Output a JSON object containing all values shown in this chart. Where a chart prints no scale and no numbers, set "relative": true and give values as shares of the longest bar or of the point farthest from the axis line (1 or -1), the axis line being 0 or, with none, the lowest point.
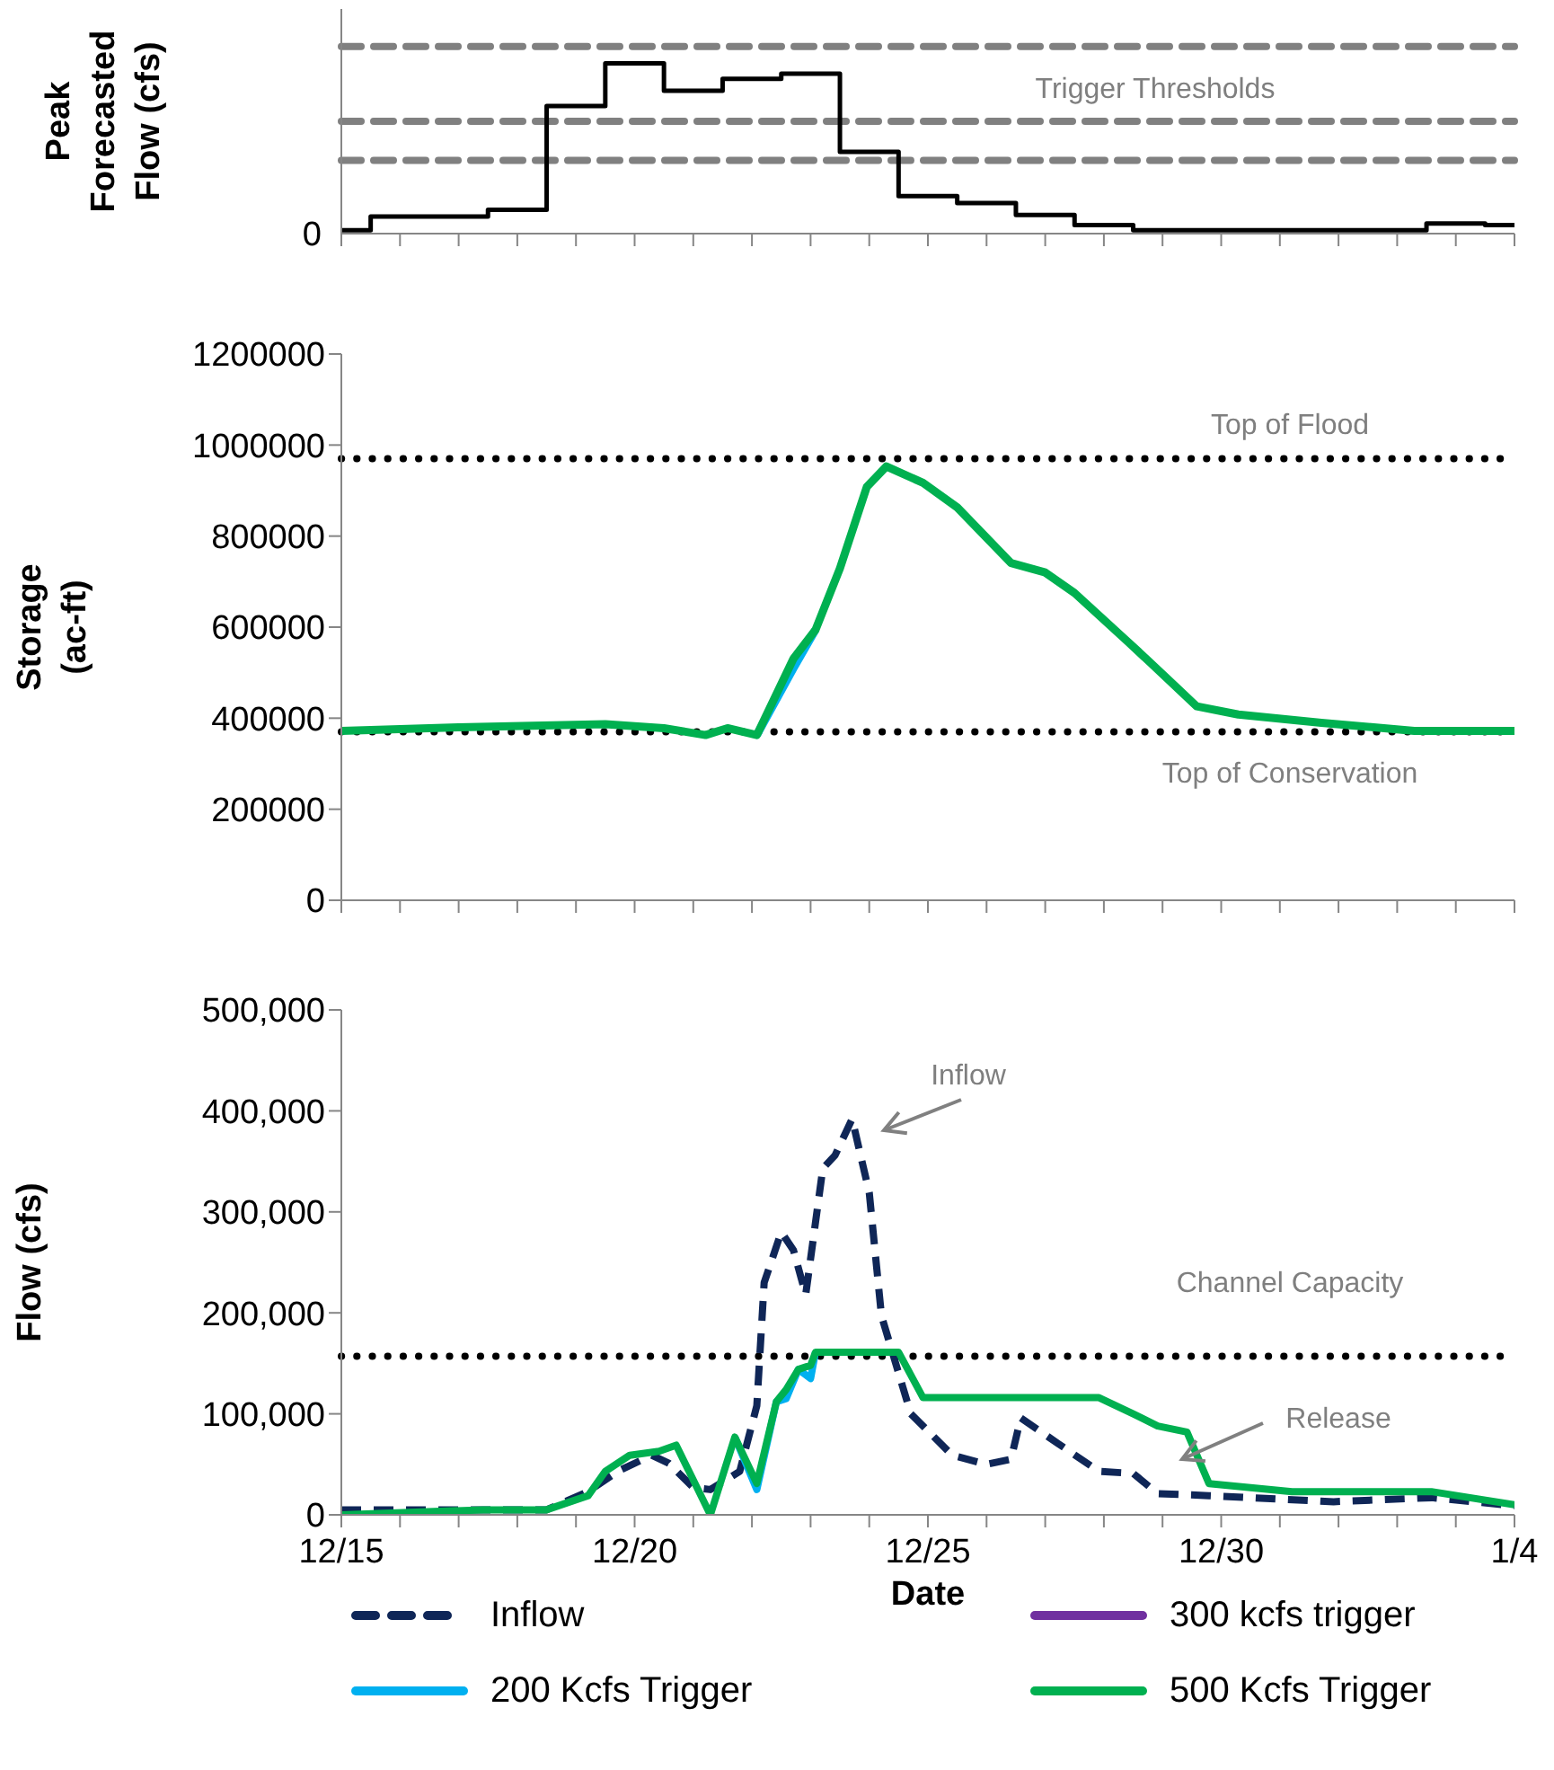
{
  "chart_data": [
    {
      "type": "step",
      "ylabel": "Peak Forecasted Flow (cfs)",
      "relative": true,
      "xlim": [
        "2000-12-15",
        "2001-01-04"
      ],
      "xticks": [
        {
          "value": "2000-12-15",
          "label": null
        },
        {
          "value": "2000-12-16",
          "label": null
        },
        {
          "value": "2000-12-17",
          "label": null
        },
        {
          "value": "2000-12-18",
          "label": null
        },
        {
          "value": "2000-12-19",
          "label": null
        },
        {
          "value": "2000-12-20",
          "label": null
        },
        {
          "value": "2000-12-21",
          "label": null
        },
        {
          "value": "2000-12-22",
          "label": null
        },
        {
          "value": "2000-12-23",
          "label": null
        },
        {
          "value": "2000-12-24",
          "label": null
        },
        {
          "value": "2000-12-25",
          "label": null
        },
        {
          "value": "2000-12-26",
          "label": null
        },
        {
          "value": "2000-12-27",
          "label": null
        },
        {
          "value": "2000-12-28",
          "label": null
        },
        {
          "value": "2000-12-29",
          "label": null
        },
        {
          "value": "2000-12-30",
          "label": null
        },
        {
          "value": "2000-12-31",
          "label": null
        },
        {
          "value": "2001-01-01",
          "label": null
        },
        {
          "value": "2001-01-02",
          "label": null
        },
        {
          "value": "2001-01-03",
          "label": null
        },
        {
          "value": "2001-01-04",
          "label": null
        }
      ],
      "tick_labels": "y",
      "series": [
        {
          "color": "#000000",
          "x": [
            "2000-12-15",
            "2000-12-15T12:00",
            "2000-12-17T12:00",
            "2000-12-18T12:00",
            "2000-12-19T12:00",
            "2000-12-20T12:00",
            "2000-12-21T12:00",
            "2000-12-22T12:00",
            "2000-12-23T12:00",
            "2000-12-24T12:00",
            "2000-12-25T12:00",
            "2000-12-26T12:00",
            "2000-12-27T12:00",
            "2000-12-28T12:00",
            "2001-01-02T12:00",
            "2001-01-03T12:00",
            "2001-01-04"
          ],
          "values": [
            0.02,
            0.1,
            0.14,
            0.75,
            1,
            0.84,
            0.91,
            0.94,
            0.48,
            0.22,
            0.18,
            0.11,
            0.05,
            0.02,
            0.06,
            0.05,
            0.05
          ]
        }
      ],
      "ref_lines": [
        {
          "axis": "y",
          "value": 1.1,
          "color": "#808080",
          "line_style": "dashed"
        },
        {
          "axis": "y",
          "value": 0.66,
          "color": "#808080",
          "line_style": "dashed"
        },
        {
          "axis": "y",
          "value": 0.43,
          "color": "#808080",
          "line_style": "dashed"
        }
      ],
      "annotations": [
        "Trigger Thresholds",
        "0"
      ]
    },
    {
      "type": "line",
      "ylabel": "Storage (ac-ft)",
      "ylim": [
        0,
        1200000
      ],
      "yticks": [
        0,
        200000,
        400000,
        600000,
        800000,
        1000000,
        1200000
      ],
      "xlim": [
        "2000-12-15",
        "2001-01-04"
      ],
      "xticks": [
        {
          "value": "2000-12-15",
          "label": null
        },
        {
          "value": "2000-12-16",
          "label": null
        },
        {
          "value": "2000-12-17",
          "label": null
        },
        {
          "value": "2000-12-18",
          "label": null
        },
        {
          "value": "2000-12-19",
          "label": null
        },
        {
          "value": "2000-12-20",
          "label": null
        },
        {
          "value": "2000-12-21",
          "label": null
        },
        {
          "value": "2000-12-22",
          "label": null
        },
        {
          "value": "2000-12-23",
          "label": null
        },
        {
          "value": "2000-12-24",
          "label": null
        },
        {
          "value": "2000-12-25",
          "label": null
        },
        {
          "value": "2000-12-26",
          "label": null
        },
        {
          "value": "2000-12-27",
          "label": null
        },
        {
          "value": "2000-12-28",
          "label": null
        },
        {
          "value": "2000-12-29",
          "label": null
        },
        {
          "value": "2000-12-30",
          "label": null
        },
        {
          "value": "2000-12-31",
          "label": null
        },
        {
          "value": "2001-01-01",
          "label": null
        },
        {
          "value": "2001-01-02",
          "label": null
        },
        {
          "value": "2001-01-03",
          "label": null
        },
        {
          "value": "2001-01-04",
          "label": null
        }
      ],
      "tick_labels": "y",
      "series": [
        {
          "color": "#00b0f0",
          "x": [
            "2000-12-22T02:00",
            "2000-12-22T17:00",
            "2000-12-23T02:00"
          ],
          "values": [
            363000,
            510000,
            594000
          ]
        },
        {
          "color": "#00b050",
          "x": [
            "2000-12-15",
            "2000-12-17",
            "2000-12-19T12:00",
            "2000-12-20T12:00",
            "2000-12-21T05:00",
            "2000-12-21T14:00",
            "2000-12-22T02:00",
            "2000-12-22T17:00",
            "2000-12-23T02:00",
            "2000-12-23T12:00",
            "2000-12-23T23:00",
            "2000-12-24T07:00",
            "2000-12-24T22:00",
            "2000-12-25T12:00",
            "2000-12-26T10:00",
            "2000-12-27",
            "2000-12-27T12:00",
            "2000-12-28T10:00",
            "2000-12-28T19:00",
            "2000-12-29T14:00",
            "2000-12-30T07:00",
            "2000-12-31T17:00",
            "2001-01-02T07:00",
            "2001-01-04"
          ],
          "values": [
            372000,
            380000,
            387000,
            378000,
            363000,
            378000,
            363000,
            531000,
            594000,
            729000,
            908000,
            953000,
            917000,
            863000,
            741000,
            720000,
            675000,
            567000,
            522000,
            426000,
            408000,
            390000,
            372000,
            372000
          ]
        }
      ],
      "ref_lines": [
        {
          "axis": "y",
          "value": 970000,
          "label": "Top of Flood",
          "color": "#000000",
          "line_style": "dotted"
        },
        {
          "axis": "y",
          "value": 370000,
          "label": "Top of Conservation",
          "color": "#000000",
          "line_style": "dotted"
        }
      ]
    },
    {
      "type": "line",
      "xlabel": "Date",
      "ylabel": "Flow (cfs)",
      "ylim": [
        0,
        500000
      ],
      "yticks": [
        0,
        {
          "value": 100000,
          "label": "100,000"
        },
        {
          "value": 200000,
          "label": "200,000"
        },
        {
          "value": 300000,
          "label": "300,000"
        },
        {
          "value": 400000,
          "label": "400,000"
        },
        {
          "value": 500000,
          "label": "500,000"
        }
      ],
      "xlim": [
        "2000-12-15",
        "2001-01-04"
      ],
      "xticks": [
        {
          "value": "2000-12-15",
          "label": "12/15"
        },
        {
          "value": "2000-12-16",
          "label": null
        },
        {
          "value": "2000-12-17",
          "label": null
        },
        {
          "value": "2000-12-18",
          "label": null
        },
        {
          "value": "2000-12-19",
          "label": null
        },
        {
          "value": "2000-12-20",
          "label": "12/20"
        },
        {
          "value": "2000-12-21",
          "label": null
        },
        {
          "value": "2000-12-22",
          "label": null
        },
        {
          "value": "2000-12-23",
          "label": null
        },
        {
          "value": "2000-12-24",
          "label": null
        },
        {
          "value": "2000-12-25",
          "label": "12/25"
        },
        {
          "value": "2000-12-26",
          "label": null
        },
        {
          "value": "2000-12-27",
          "label": null
        },
        {
          "value": "2000-12-28",
          "label": null
        },
        {
          "value": "2000-12-29",
          "label": null
        },
        {
          "value": "2000-12-30",
          "label": "12/30"
        },
        {
          "value": "2000-12-31",
          "label": null
        },
        {
          "value": "2001-01-01",
          "label": null
        },
        {
          "value": "2001-01-02",
          "label": null
        },
        {
          "value": "2001-01-03",
          "label": null
        },
        {
          "value": "2001-01-04",
          "label": "1/4"
        }
      ],
      "legend": "bottom",
      "series": [
        {
          "name": "Inflow",
          "color": "#0f2657",
          "line_style": "dashed",
          "x": [
            "2000-12-15",
            "2000-12-17T10:00",
            "2000-12-18T12:00",
            "2000-12-19T05:00",
            "2000-12-19T17:00",
            "2000-12-20T07:00",
            "2000-12-20T14:00",
            "2000-12-21",
            "2000-12-21T07:00",
            "2000-12-21T19:00",
            "2000-12-22T02:00",
            "2000-12-22T05:00",
            "2000-12-22T12:00",
            "2000-12-22T17:00",
            "2000-12-22T22:00",
            "2000-12-23T05:00",
            "2000-12-23T10:00",
            "2000-12-23T17:00",
            "2000-12-24",
            "2000-12-24T05:00",
            "2000-12-24T17:00",
            "2000-12-25T10:00",
            "2000-12-26",
            "2000-12-26T10:00",
            "2000-12-26T14:00",
            "2000-12-27T05:00",
            "2000-12-27T22:00",
            "2000-12-28T12:00",
            "2000-12-28T22:00",
            "2000-12-29T19:00",
            "2000-12-31T22:00",
            "2001-01-02T14:00",
            "2001-01-04"
          ],
          "values": [
            5000,
            5000,
            5000,
            23000,
            43000,
            59000,
            51000,
            27000,
            25000,
            43000,
            108000,
            230000,
            280000,
            262000,
            218000,
            343000,
            356000,
            392000,
            319000,
            197000,
            100000,
            59000,
            50000,
            55000,
            96000,
            71000,
            43000,
            41000,
            21000,
            19000,
            13000,
            17000,
            9000
          ]
        },
        {
          "name": "300 kcfs trigger",
          "color": "#7030a0"
        },
        {
          "name": "200 Kcfs Trigger",
          "color": "#00b0f0",
          "x": [
            "2000-12-21T17:00",
            "2000-12-22T02:00",
            "2000-12-22T10:00",
            "2000-12-22T14:00",
            "2000-12-22T19:00",
            "2000-12-23",
            "2000-12-23T02:00"
          ],
          "values": [
            77000,
            25000,
            112000,
            115000,
            144000,
            135000,
            161000
          ]
        },
        {
          "name": "500 Kcfs Trigger",
          "color": "#00b050",
          "x": [
            "2000-12-15",
            "2000-12-17T10:00",
            "2000-12-18T12:00",
            "2000-12-19T05:00",
            "2000-12-19T12:00",
            "2000-12-19T22:00",
            "2000-12-20T10:00",
            "2000-12-20T17:00",
            "2000-12-21T07:00",
            "2000-12-21T17:00",
            "2000-12-22T02:00",
            "2000-12-22T10:00",
            "2000-12-22T14:00",
            "2000-12-22T19:00",
            "2000-12-23",
            "2000-12-23T02:00",
            "2000-12-24T12:00",
            "2000-12-24T22:00",
            "2000-12-27T22:00",
            "2000-12-28T12:00",
            "2000-12-28T22:00",
            "2000-12-29T10:00",
            "2000-12-29T19:00",
            "2000-12-31T05:00",
            "2001-01-02T14:00",
            "2001-01-04"
          ],
          "values": [
            0,
            5000,
            5000,
            19000,
            43000,
            59000,
            63000,
            69000,
            0,
            77000,
            31000,
            112000,
            124000,
            144000,
            148000,
            161000,
            161000,
            116000,
            116000,
            100000,
            88000,
            82000,
            31000,
            23000,
            23000,
            10000
          ]
        }
      ],
      "ref_lines": [
        {
          "axis": "y",
          "value": 157000,
          "label": "Channel Capacity",
          "color": "#000000",
          "line_style": "dotted"
        }
      ],
      "annotations": [
        "Inflow",
        "Release"
      ]
    }
  ]
}
